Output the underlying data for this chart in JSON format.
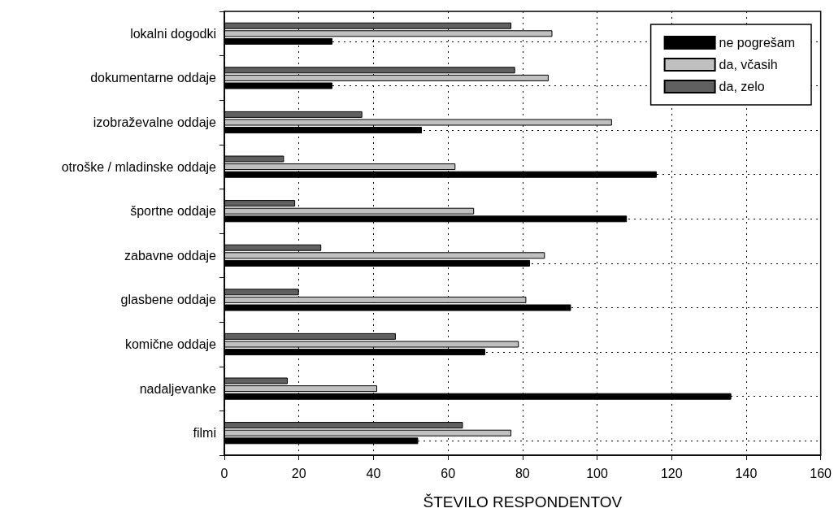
{
  "chart_data": {
    "type": "bar",
    "orientation": "horizontal",
    "xlabel": "ŠTEVILO RESPONDENTOV",
    "categories": [
      "lokalni dogodki",
      "dokumentarne oddaje",
      "izobraževalne oddaje",
      "otroške / mladinske oddaje",
      "športne oddaje",
      "zabavne oddaje",
      "glasbene oddaje",
      "komične oddaje",
      "nadaljevanke",
      "filmi"
    ],
    "series": [
      {
        "name": "ne pogrešam",
        "color": "#000000",
        "values": [
          29,
          29,
          53,
          116,
          108,
          82,
          93,
          70,
          136,
          52
        ]
      },
      {
        "name": "da, včasih",
        "color": "#c0c0c0",
        "values": [
          88,
          87,
          104,
          62,
          67,
          86,
          81,
          79,
          41,
          77
        ]
      },
      {
        "name": "da, zelo",
        "color": "#606060",
        "values": [
          77,
          78,
          37,
          16,
          19,
          26,
          20,
          46,
          17,
          64
        ]
      }
    ],
    "xlim": [
      0,
      160
    ],
    "xticks": [
      0,
      20,
      40,
      60,
      80,
      100,
      120,
      140,
      160
    ],
    "grid": true,
    "legend": "top right"
  }
}
